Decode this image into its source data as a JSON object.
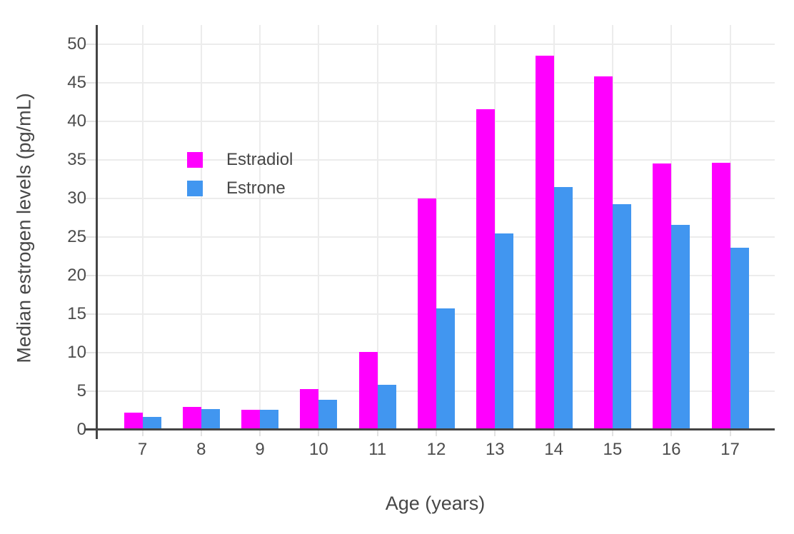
{
  "chart_data": {
    "type": "bar",
    "xlabel": "Age (years)",
    "ylabel": "Median estrogen levels (pg/mL)",
    "categories": [
      7,
      8,
      9,
      10,
      11,
      12,
      13,
      14,
      15,
      16,
      17
    ],
    "series": [
      {
        "name": "Estradiol",
        "color": "#FF00FE",
        "values": [
          2.2,
          3.0,
          2.6,
          5.3,
          10.1,
          30.0,
          41.6,
          48.5,
          45.8,
          34.5,
          34.6
        ]
      },
      {
        "name": "Estrone",
        "color": "#4196F0",
        "values": [
          1.7,
          2.7,
          2.6,
          3.9,
          5.8,
          15.7,
          25.5,
          31.5,
          29.3,
          26.6,
          23.6
        ]
      }
    ],
    "ylim": [
      0,
      52.5
    ],
    "yticks": [
      0,
      5,
      10,
      15,
      20,
      25,
      30,
      35,
      40,
      45,
      50
    ],
    "grid": true,
    "legend_position": "inside-top-left",
    "colors": {
      "axis_line": "#444444",
      "gridline": "#ececec",
      "tick_label": "#4c4c4c",
      "axis_title": "#474747",
      "background": "#ffffff"
    }
  }
}
